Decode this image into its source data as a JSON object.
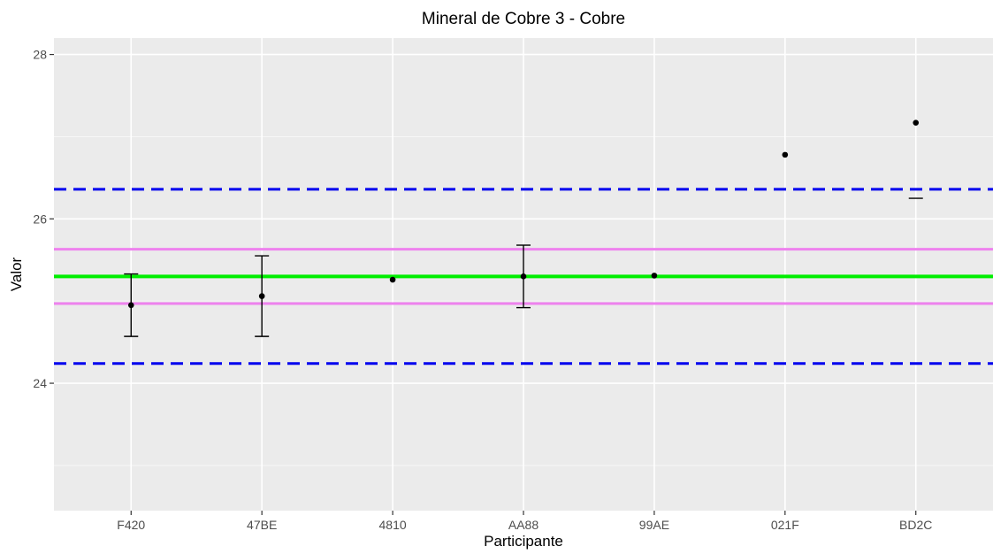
{
  "chart_data": {
    "type": "scatter",
    "title": "Mineral de Cobre 3 - Cobre",
    "xlabel": "Participante",
    "ylabel": "Valor",
    "categories": [
      "F420",
      "47BE",
      "4810",
      "AA88",
      "99AE",
      "021F",
      "BD2C"
    ],
    "y_ticks": [
      24,
      26,
      28
    ],
    "ylim": [
      22.45,
      28.2
    ],
    "grid": true,
    "background": "#ebebeb",
    "points": [
      {
        "x": "F420",
        "y": 24.95,
        "err_low": 24.57,
        "err_high": 25.33
      },
      {
        "x": "47BE",
        "y": 25.06,
        "err_low": 24.57,
        "err_high": 25.55
      },
      {
        "x": "4810",
        "y": 25.26,
        "err_low": null,
        "err_high": null
      },
      {
        "x": "AA88",
        "y": 25.3,
        "err_low": 24.92,
        "err_high": 25.68
      },
      {
        "x": "99AE",
        "y": 25.31,
        "err_low": null,
        "err_high": null
      },
      {
        "x": "021F",
        "y": 26.78,
        "err_low": null,
        "err_high": null
      },
      {
        "x": "BD2C",
        "y": 27.17,
        "err_low": 26.25,
        "err_high": null
      }
    ],
    "reference_lines": [
      {
        "y": 25.3,
        "color": "#00ee00",
        "style": "solid"
      },
      {
        "y": 25.63,
        "color": "#ee82ee",
        "style": "solid"
      },
      {
        "y": 24.97,
        "color": "#ee82ee",
        "style": "solid"
      },
      {
        "y": 26.36,
        "color": "#0000ee",
        "style": "dashed"
      },
      {
        "y": 24.24,
        "color": "#0000ee",
        "style": "dashed"
      }
    ]
  }
}
